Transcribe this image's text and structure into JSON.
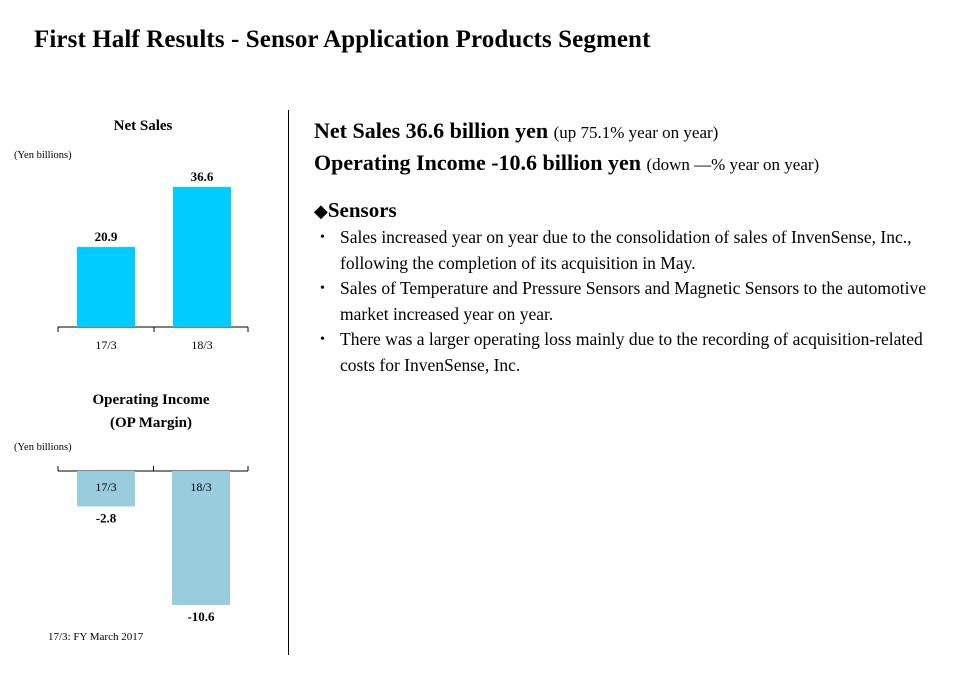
{
  "page": {
    "title": "First Half Results - Sensor Application Products Segment",
    "footnote": "17/3:  FY March 2017"
  },
  "summary": {
    "net_sales_main": "Net Sales 36.6 billion yen",
    "net_sales_sub": "(up 75.1% year on year)",
    "op_income_main": "Operating Income -10.6 billion yen",
    "op_income_sub": "(down —% year on year)"
  },
  "sensors": {
    "marker": "◆",
    "heading": "Sensors",
    "bullet_glyph": "•",
    "bullets": [
      "Sales increased year on year due to the consolidation of sales of InvenSense, Inc., following the completion of its acquisition in May.",
      "Sales of Temperature and Pressure Sensors and Magnetic Sensors to the automotive market increased year on year.",
      "There was a larger operating loss mainly due to the recording of acquisition-related costs for InvenSense, Inc."
    ]
  },
  "chart_data": [
    {
      "type": "bar",
      "title": "Net Sales",
      "unit_label": "(Yen billions)",
      "categories": [
        "17/3",
        "18/3"
      ],
      "values": [
        20.9,
        36.6
      ],
      "value_labels": [
        "20.9",
        "36.6"
      ],
      "color": "#00CCFF",
      "ylim": [
        0,
        36.6
      ]
    },
    {
      "type": "bar",
      "title_lines": [
        "Operating Income",
        "(OP Margin)"
      ],
      "unit_label": "(Yen billions)",
      "categories": [
        "17/3",
        "18/3"
      ],
      "values": [
        -2.8,
        -10.6
      ],
      "value_labels": [
        "-2.8",
        "-10.6"
      ],
      "color": "#99CCDD",
      "ylim": [
        -10.6,
        0
      ]
    }
  ]
}
